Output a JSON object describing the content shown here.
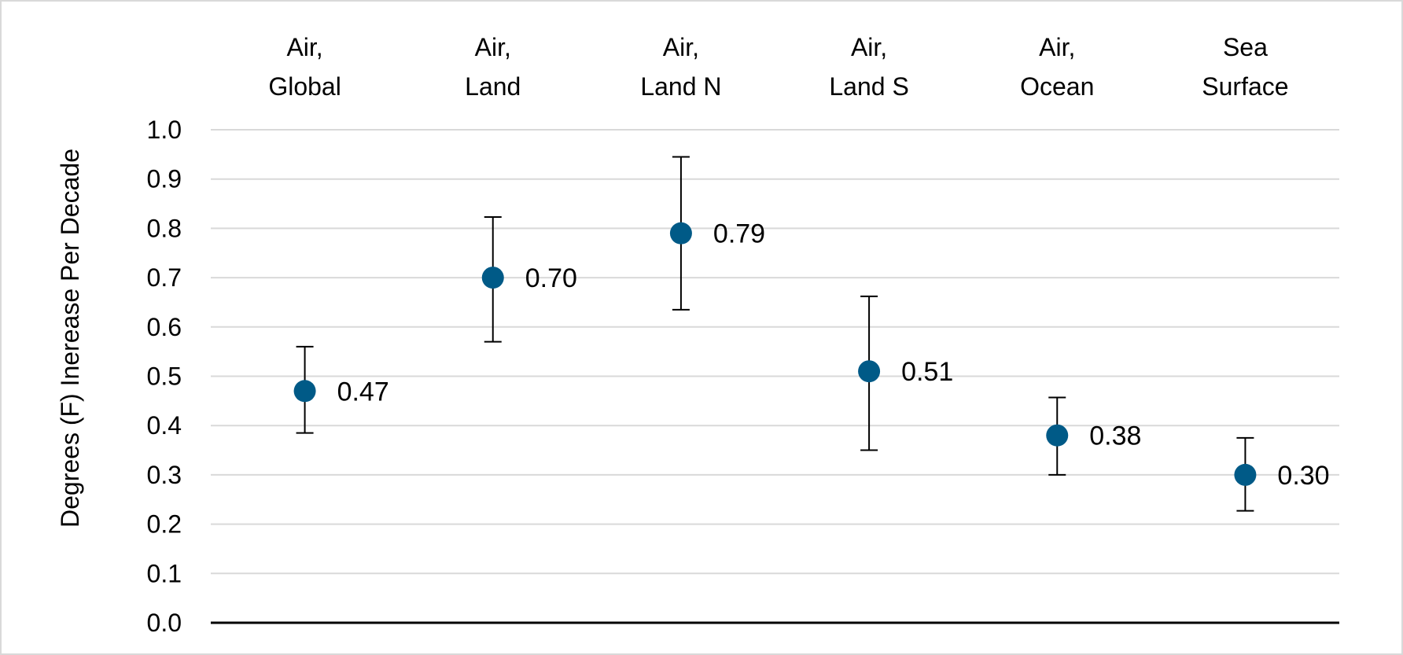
{
  "chart_data": {
    "type": "scatter",
    "title": "",
    "xlabel": "",
    "ylabel": "Degrees (F) Inerease Per Decade",
    "ylim": [
      0.0,
      1.0
    ],
    "yticks": [
      "0.0",
      "0.1",
      "0.2",
      "0.3",
      "0.4",
      "0.5",
      "0.6",
      "0.7",
      "0.8",
      "0.9",
      "1.0"
    ],
    "grid": true,
    "legend": "none",
    "categories": [
      [
        "Air,",
        "Global"
      ],
      [
        "Air,",
        "Land"
      ],
      [
        "Air,",
        "Land N"
      ],
      [
        "Air,",
        "Land S"
      ],
      [
        "Air,",
        "Ocean"
      ],
      [
        "Sea",
        "Surface"
      ]
    ],
    "values": [
      0.47,
      0.7,
      0.79,
      0.51,
      0.38,
      0.3
    ],
    "value_labels": [
      "0.47",
      "0.70",
      "0.79",
      "0.51",
      "0.38",
      "0.30"
    ],
    "error_low": [
      0.385,
      0.57,
      0.635,
      0.35,
      0.3,
      0.227
    ],
    "error_high": [
      0.56,
      0.823,
      0.945,
      0.662,
      0.457,
      0.375
    ],
    "marker_color": "#005a87",
    "gridline_color": "#d9d9d9",
    "axis_color": "#000000"
  }
}
